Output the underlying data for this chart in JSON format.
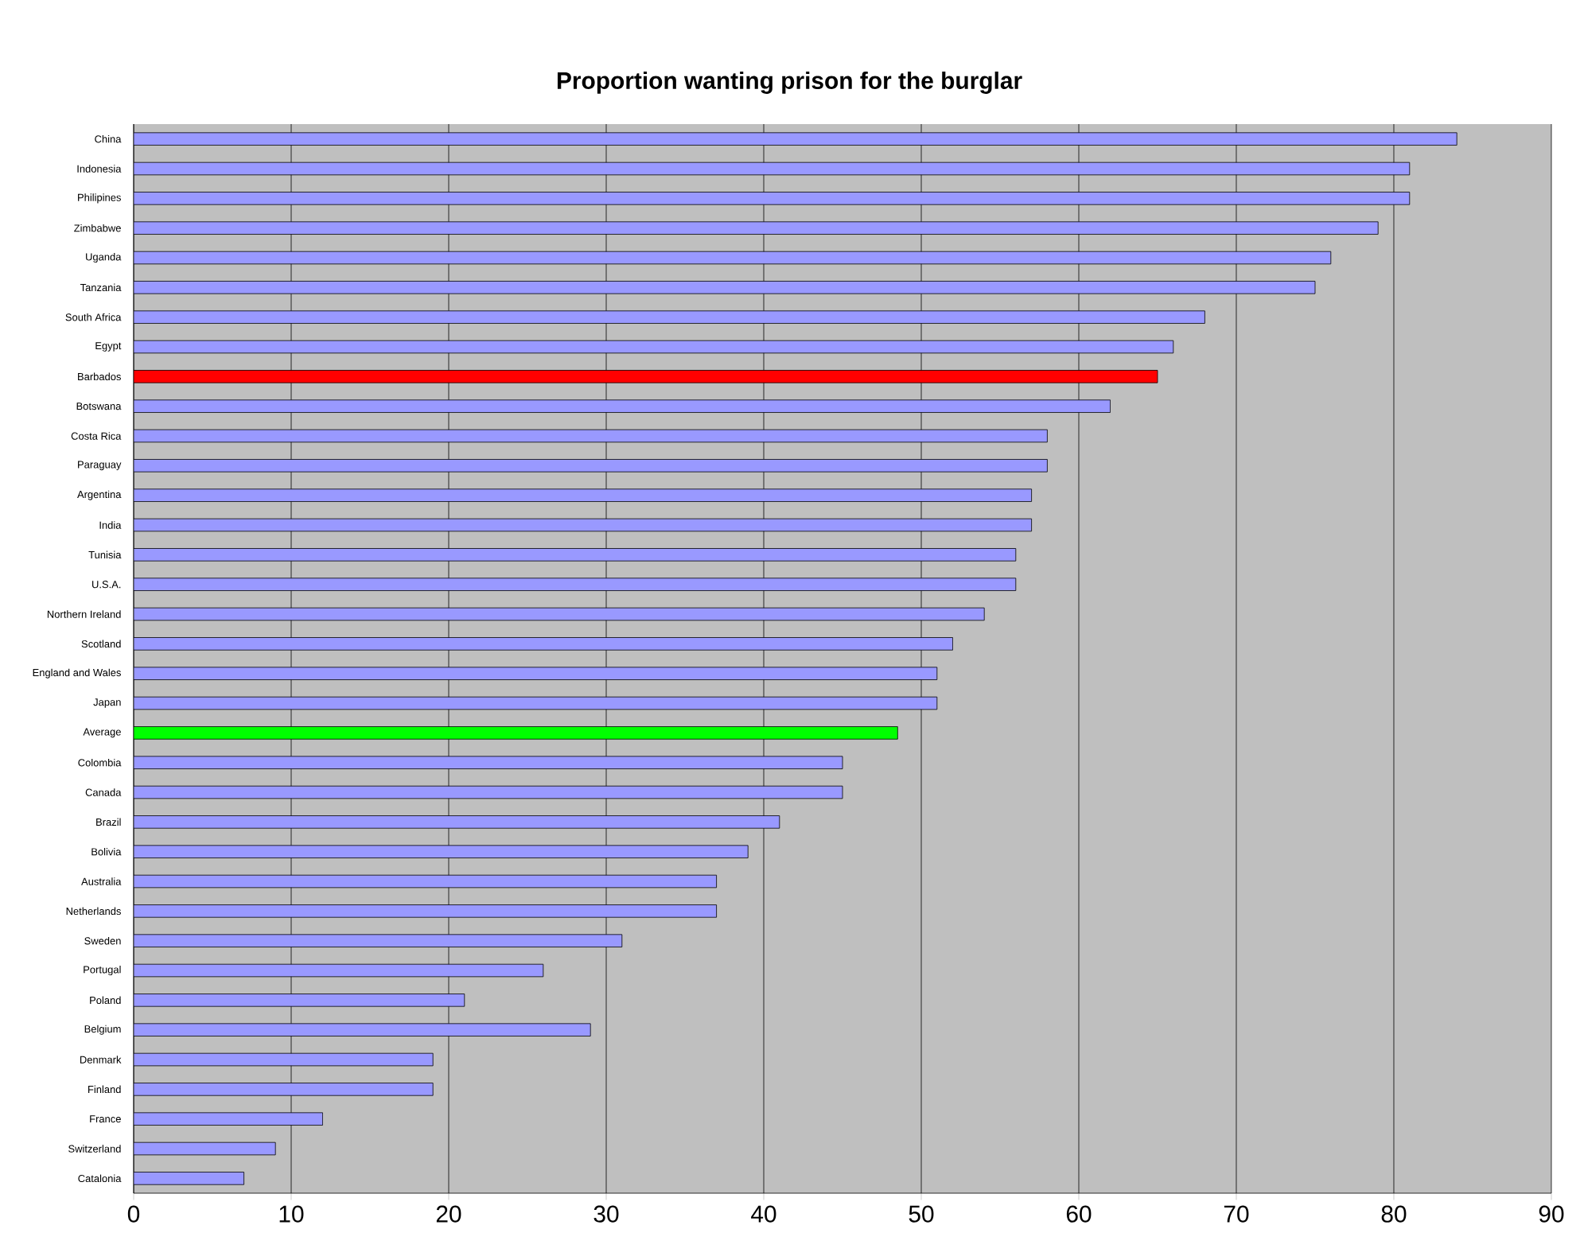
{
  "chart_data": {
    "type": "bar",
    "orientation": "horizontal",
    "title": "Proportion wanting prison for the burglar",
    "categories": [
      "China",
      "Indonesia",
      "Philipines",
      "Zimbabwe",
      "Uganda",
      "Tanzania",
      "South Africa",
      "Egypt",
      "Barbados",
      "Botswana",
      "Costa Rica",
      "Paraguay",
      "Argentina",
      "India",
      "Tunisia",
      "U.S.A.",
      "Northern Ireland",
      "Scotland",
      "England and Wales",
      "Japan",
      "Average",
      "Colombia",
      "Canada",
      "Brazil",
      "Bolivia",
      "Australia",
      "Netherlands",
      "Sweden",
      "Portugal",
      "Poland",
      "Belgium",
      "Denmark",
      "Finland",
      "France",
      "Switzerland",
      "Catalonia"
    ],
    "values": [
      84,
      81,
      81,
      79,
      76,
      75,
      68,
      66,
      65,
      62,
      58,
      58,
      57,
      57,
      56,
      56,
      54,
      52,
      51,
      51,
      48.5,
      45,
      45,
      41,
      39,
      37,
      37,
      31,
      26,
      21,
      29,
      19,
      19,
      12,
      9,
      7
    ],
    "colors": [
      "#9999ff",
      "#9999ff",
      "#9999ff",
      "#9999ff",
      "#9999ff",
      "#9999ff",
      "#9999ff",
      "#9999ff",
      "#ff0000",
      "#9999ff",
      "#9999ff",
      "#9999ff",
      "#9999ff",
      "#9999ff",
      "#9999ff",
      "#9999ff",
      "#9999ff",
      "#9999ff",
      "#9999ff",
      "#9999ff",
      "#00ff00",
      "#9999ff",
      "#9999ff",
      "#9999ff",
      "#9999ff",
      "#9999ff",
      "#9999ff",
      "#9999ff",
      "#9999ff",
      "#9999ff",
      "#9999ff",
      "#9999ff",
      "#9999ff",
      "#9999ff",
      "#9999ff",
      "#9999ff"
    ],
    "xlim": [
      0,
      90
    ],
    "xticks": [
      0,
      10,
      20,
      30,
      40,
      50,
      60,
      70,
      80,
      90
    ],
    "grid": "x"
  }
}
